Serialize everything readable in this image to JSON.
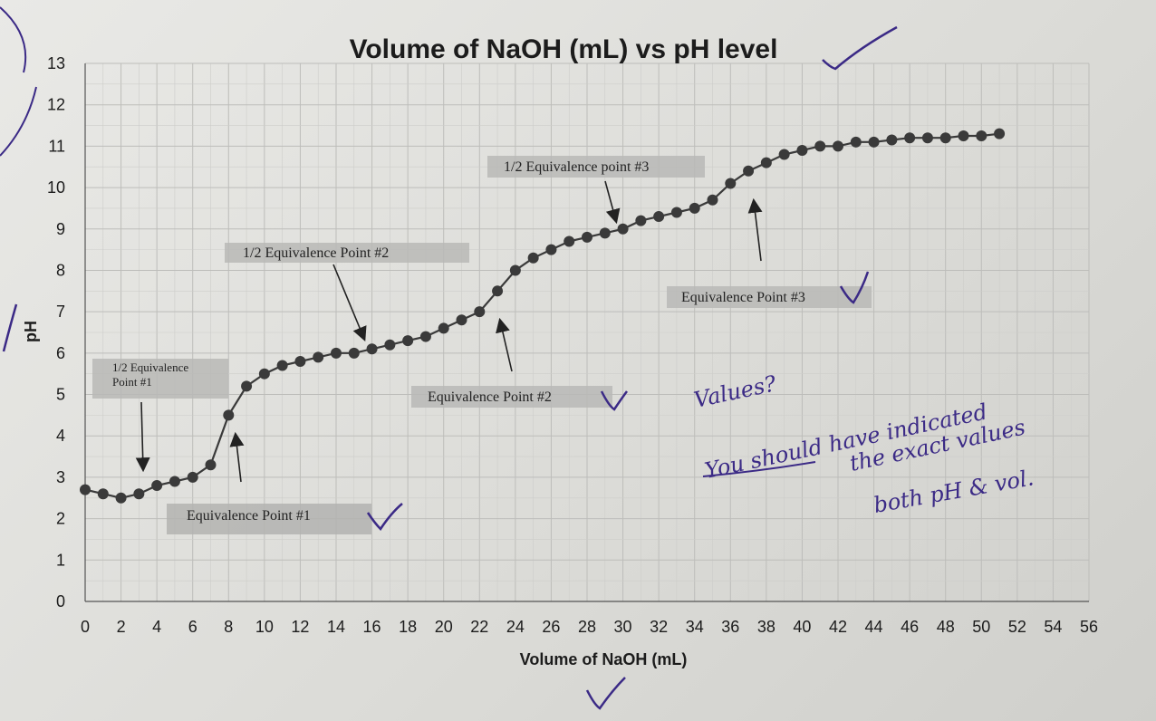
{
  "chart_data": {
    "type": "scatter",
    "title": "Volume of NaOH (mL) vs pH level",
    "xlabel": "Volume of NaOH (mL)",
    "ylabel": "pH",
    "xlim": [
      0,
      56
    ],
    "ylim": [
      0,
      13
    ],
    "x_ticks": [
      "0",
      "2",
      "4",
      "6",
      "8",
      "10",
      "12",
      "14",
      "16",
      "18",
      "20",
      "22",
      "24",
      "26",
      "28",
      "30",
      "32",
      "34",
      "36",
      "38",
      "40",
      "42",
      "44",
      "46",
      "48",
      "50",
      "52",
      "54",
      "56"
    ],
    "y_ticks": [
      "0",
      "1",
      "2",
      "3",
      "4",
      "5",
      "6",
      "7",
      "8",
      "9",
      "10",
      "11",
      "12",
      "13"
    ],
    "grid": true,
    "legend": "none",
    "series": [
      {
        "color": "#3a3a3a",
        "x": [
          0,
          1,
          2,
          3,
          4,
          5,
          6,
          7,
          8,
          9,
          10,
          11,
          12,
          13,
          14,
          15,
          16,
          17,
          18,
          19,
          20,
          21,
          22,
          23,
          24,
          25,
          26,
          27,
          28,
          29,
          30,
          31,
          32,
          33,
          34,
          35,
          36,
          37,
          38,
          39,
          40,
          41,
          42,
          43,
          44,
          45,
          46,
          47,
          48,
          49,
          50,
          51
        ],
        "y": [
          2.7,
          2.6,
          2.5,
          2.6,
          2.8,
          2.9,
          3.0,
          3.3,
          4.5,
          5.2,
          5.5,
          5.7,
          5.8,
          5.9,
          6.0,
          6.0,
          6.1,
          6.2,
          6.3,
          6.4,
          6.6,
          6.8,
          7.0,
          7.5,
          8.0,
          8.3,
          8.5,
          8.7,
          8.8,
          8.9,
          9.0,
          9.2,
          9.3,
          9.4,
          9.5,
          9.7,
          10.1,
          10.4,
          10.6,
          10.8,
          10.9,
          11.0,
          11.0,
          11.1,
          11.1,
          11.15,
          11.2,
          11.2,
          11.2,
          11.25,
          11.25,
          11.3
        ]
      }
    ],
    "annotations": [
      {
        "id": "eq1",
        "text": "Equivalence Point #1",
        "point": [
          7.5,
          4.2
        ]
      },
      {
        "id": "half1",
        "text_lines": [
          "1/2 Equivalence",
          "Point #1"
        ],
        "point": [
          3.2,
          3.0
        ]
      },
      {
        "id": "half2",
        "text": "1/2 Equivalence Point #2",
        "point": [
          15.5,
          6.0
        ]
      },
      {
        "id": "eq2",
        "text": "Equivalence Point #2",
        "point": [
          22.0,
          7.0
        ]
      },
      {
        "id": "half3",
        "text": "1/2 Equivalence point #3",
        "point": [
          29.0,
          9.1
        ]
      },
      {
        "id": "eq3",
        "text": "Equivalence Point #3",
        "point": [
          36.0,
          10.0
        ]
      }
    ],
    "handwritten": {
      "lines": [
        "Values?",
        "You should have indicated",
        "the exact values",
        "both pH & vol."
      ],
      "ink_color": "#3b2a86"
    }
  }
}
